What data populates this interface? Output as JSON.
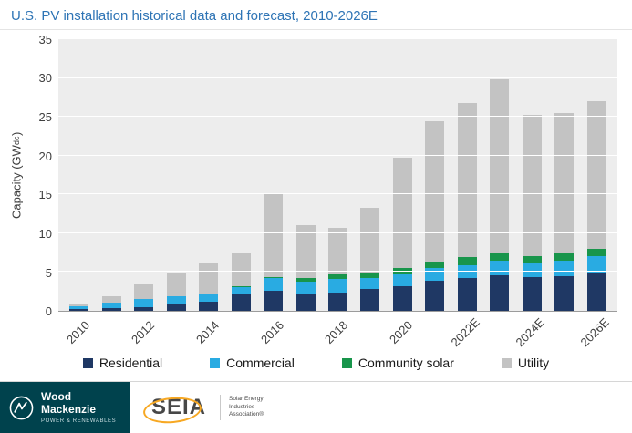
{
  "title": "U.S. PV installation historical data and forecast, 2010-2026E",
  "colors": {
    "title": "#2E74B5",
    "plot_bg": "#EDEDED",
    "footer_teal": "#00424D",
    "seia_gold": "#F7A823",
    "axis_text": "#3F3F3F"
  },
  "chart_data": {
    "type": "bar",
    "stacked": true,
    "title": "U.S. PV installation historical data and forecast, 2010-2026E",
    "ylabel": "Capacity (GWdc)",
    "ylabel_parts": {
      "pre": "Capacity (GW",
      "sub": "dc",
      "post": ")"
    },
    "ylim": [
      0,
      35
    ],
    "yticks": [
      0,
      5,
      10,
      15,
      20,
      25,
      30,
      35
    ],
    "grid": true,
    "legend_position": "bottom",
    "categories": [
      "2010",
      "2011",
      "2012",
      "2013",
      "2014",
      "2015",
      "2016",
      "2017",
      "2018",
      "2019",
      "2020",
      "2021",
      "2022E",
      "2023E",
      "2024E",
      "2025E",
      "2026E"
    ],
    "xtick_every": 2,
    "xtick_labels": [
      "2010",
      "2012",
      "2014",
      "2016",
      "2018",
      "2020",
      "2022E",
      "2024E",
      "2026E"
    ],
    "series": [
      {
        "name": "Residential",
        "color": "#1F3864",
        "values": [
          0.25,
          0.3,
          0.5,
          0.8,
          1.2,
          2.1,
          2.6,
          2.2,
          2.4,
          2.8,
          3.2,
          3.9,
          4.2,
          4.6,
          4.3,
          4.5,
          4.8
        ]
      },
      {
        "name": "Commercial",
        "color": "#29ABE2",
        "values": [
          0.35,
          0.8,
          1.0,
          1.1,
          1.0,
          1.0,
          1.6,
          1.6,
          1.7,
          1.4,
          1.5,
          1.6,
          1.7,
          1.9,
          1.9,
          2.0,
          2.2
        ]
      },
      {
        "name": "Community solar",
        "color": "#18954B",
        "values": [
          0,
          0,
          0,
          0,
          0,
          0.1,
          0.2,
          0.4,
          0.6,
          0.7,
          0.8,
          0.9,
          1.0,
          1.0,
          0.8,
          1.0,
          1.0
        ]
      },
      {
        "name": "Utility",
        "color": "#C3C3C3",
        "values": [
          0.25,
          0.8,
          1.9,
          2.9,
          4.0,
          4.3,
          10.6,
          6.8,
          6.0,
          8.4,
          14.2,
          18.0,
          19.9,
          22.3,
          18.3,
          18.0,
          19.0
        ]
      }
    ]
  },
  "footer": {
    "woodmac": {
      "line1": "Wood",
      "line2": "Mackenzie",
      "tagline": "POWER & RENEWABLES"
    },
    "seia": {
      "wordmark": "SEIA",
      "tagline_line1": "Solar Energy",
      "tagline_line2": "Industries",
      "tagline_line3": "Association®"
    }
  }
}
